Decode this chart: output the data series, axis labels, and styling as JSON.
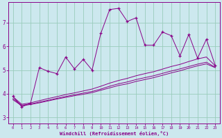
{
  "xlabel": "Windchill (Refroidissement éolien,°C)",
  "ylabel": "",
  "bg_color": "#cce8ee",
  "grid_color": "#99ccbb",
  "line_color": "#880088",
  "xlim": [
    -0.5,
    23.5
  ],
  "ylim": [
    2.75,
    7.85
  ],
  "xticks": [
    0,
    1,
    2,
    3,
    4,
    5,
    6,
    7,
    8,
    9,
    10,
    11,
    12,
    13,
    14,
    15,
    16,
    17,
    18,
    19,
    20,
    21,
    22,
    23
  ],
  "yticks": [
    3,
    4,
    5,
    6,
    7
  ],
  "main_line": [
    3.9,
    3.45,
    3.6,
    5.1,
    4.95,
    4.85,
    5.55,
    5.05,
    5.45,
    5.0,
    6.55,
    7.55,
    7.6,
    7.05,
    7.2,
    6.05,
    6.05,
    6.6,
    6.45,
    5.6,
    6.5,
    5.5,
    6.3,
    5.2
  ],
  "smooth_line1": [
    3.75,
    3.5,
    3.55,
    3.62,
    3.7,
    3.78,
    3.85,
    3.92,
    3.98,
    4.05,
    4.15,
    4.25,
    4.35,
    4.42,
    4.52,
    4.6,
    4.68,
    4.78,
    4.88,
    4.97,
    5.08,
    5.18,
    5.26,
    5.1
  ],
  "smooth_line2": [
    3.8,
    3.52,
    3.57,
    3.65,
    3.73,
    3.81,
    3.89,
    3.96,
    4.03,
    4.1,
    4.2,
    4.32,
    4.42,
    4.5,
    4.6,
    4.68,
    4.76,
    4.86,
    4.96,
    5.05,
    5.15,
    5.25,
    5.33,
    5.12
  ],
  "smooth_line3": [
    3.88,
    3.56,
    3.62,
    3.71,
    3.8,
    3.88,
    3.97,
    4.04,
    4.12,
    4.2,
    4.32,
    4.45,
    4.56,
    4.65,
    4.76,
    4.85,
    4.93,
    5.04,
    5.15,
    5.24,
    5.36,
    5.47,
    5.55,
    5.18
  ]
}
